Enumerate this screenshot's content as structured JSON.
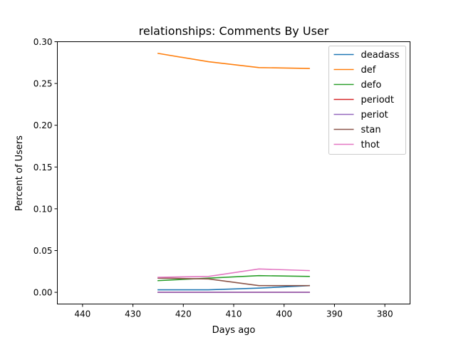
{
  "chart_data": {
    "type": "line",
    "title": "relationships: Comments By User",
    "xlabel": "Days ago",
    "ylabel": "Percent of Users",
    "xlim": [
      445,
      375
    ],
    "ylim": [
      -0.014,
      0.3
    ],
    "x_inverted": true,
    "xticks": [
      440,
      430,
      420,
      410,
      400,
      390,
      380
    ],
    "xtick_labels": [
      "440",
      "430",
      "420",
      "410",
      "400",
      "390",
      "380"
    ],
    "yticks": [
      0.0,
      0.05,
      0.1,
      0.15,
      0.2,
      0.25,
      0.3
    ],
    "ytick_labels": [
      "0.00",
      "0.05",
      "0.10",
      "0.15",
      "0.20",
      "0.25",
      "0.30"
    ],
    "grid": false,
    "legend_position": "top-right",
    "x": [
      425,
      415,
      405,
      395
    ],
    "series": [
      {
        "name": "deadass",
        "color": "#1f77b4",
        "values": [
          0.003,
          0.003,
          0.005,
          0.008
        ]
      },
      {
        "name": "def",
        "color": "#ff7f0e",
        "values": [
          0.286,
          0.276,
          0.269,
          0.268
        ]
      },
      {
        "name": "defo",
        "color": "#2ca02c",
        "values": [
          0.014,
          0.017,
          0.02,
          0.019
        ]
      },
      {
        "name": "periodt",
        "color": "#d62728",
        "values": [
          0.0,
          0.0,
          0.0,
          0.0
        ]
      },
      {
        "name": "periot",
        "color": "#9467bd",
        "values": [
          0.0,
          0.0,
          0.0,
          0.0
        ]
      },
      {
        "name": "stan",
        "color": "#8c564b",
        "values": [
          0.017,
          0.016,
          0.008,
          0.008
        ]
      },
      {
        "name": "thot",
        "color": "#e377c2",
        "values": [
          0.018,
          0.019,
          0.028,
          0.026
        ]
      }
    ]
  }
}
